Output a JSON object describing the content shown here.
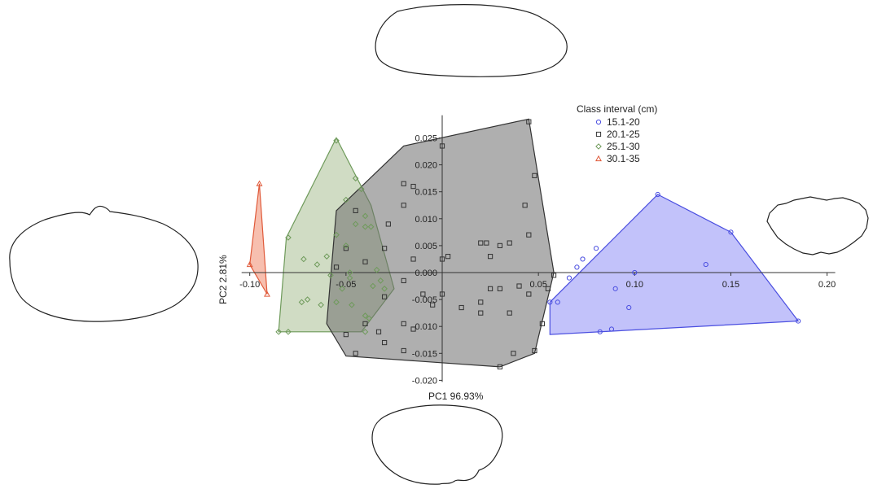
{
  "chart_data": {
    "type": "scatter",
    "title": "",
    "xlabel": "PC1 96.93%",
    "ylabel": "PC2 2.81%",
    "xlim": [
      -0.1,
      0.2
    ],
    "ylim": [
      -0.02,
      0.028
    ],
    "x_ticks": [
      "-0.10",
      "-0.05",
      "0.05",
      "0.10",
      "0.15",
      "0.20"
    ],
    "y_ticks": [
      "-0.020",
      "-0.015",
      "-0.010",
      "-0.005",
      "0.000",
      "0.005",
      "0.010",
      "0.015",
      "0.020",
      "0.025"
    ],
    "x_tick_values": [
      -0.1,
      -0.05,
      0.05,
      0.1,
      0.15,
      0.2
    ],
    "y_tick_values": [
      -0.02,
      -0.015,
      -0.01,
      -0.005,
      0.0,
      0.005,
      0.01,
      0.015,
      0.02,
      0.025
    ],
    "grid": false,
    "legend": {
      "title": "Class interval (cm)",
      "placement": "top-right"
    },
    "series": [
      {
        "name": "15.1-20",
        "marker": "circle",
        "color": "#4a4ee0",
        "fill": "#8f8ff5",
        "points": [
          [
            0.056,
            -0.0055
          ],
          [
            0.06,
            -0.0055
          ],
          [
            0.066,
            -0.001
          ],
          [
            0.07,
            0.001
          ],
          [
            0.073,
            0.0025
          ],
          [
            0.08,
            0.0045
          ],
          [
            0.09,
            -0.003
          ],
          [
            0.097,
            -0.0065
          ],
          [
            0.1,
            0.0
          ],
          [
            0.082,
            -0.011
          ],
          [
            0.088,
            -0.0105
          ],
          [
            0.112,
            0.0145
          ],
          [
            0.137,
            0.0015
          ],
          [
            0.15,
            0.0075
          ],
          [
            0.185,
            -0.009
          ]
        ],
        "hull": [
          [
            0.112,
            0.0145
          ],
          [
            0.15,
            0.0075
          ],
          [
            0.185,
            -0.009
          ],
          [
            0.056,
            -0.0115
          ],
          [
            0.056,
            -0.0055
          ]
        ]
      },
      {
        "name": "20.1-25",
        "marker": "square",
        "color": "#333333",
        "fill": "#6e6e6e",
        "points": [
          [
            -0.045,
            0.0115
          ],
          [
            -0.028,
            0.009
          ],
          [
            -0.02,
            0.0165
          ],
          [
            -0.015,
            0.016
          ],
          [
            -0.02,
            0.0125
          ],
          [
            0.0,
            0.0235
          ],
          [
            0.045,
            0.028
          ],
          [
            0.048,
            0.018
          ],
          [
            0.043,
            0.0125
          ],
          [
            0.045,
            0.007
          ],
          [
            0.023,
            0.0055
          ],
          [
            0.02,
            0.0055
          ],
          [
            0.035,
            0.0055
          ],
          [
            0.03,
            0.005
          ],
          [
            0.025,
            0.003
          ],
          [
            0.003,
            0.003
          ],
          [
            0.0,
            0.0025
          ],
          [
            -0.015,
            0.0025
          ],
          [
            -0.03,
            0.0045
          ],
          [
            -0.05,
            0.0045
          ],
          [
            -0.04,
            0.002
          ],
          [
            -0.055,
            0.001
          ],
          [
            -0.02,
            -0.0015
          ],
          [
            -0.01,
            -0.004
          ],
          [
            0.0,
            -0.004
          ],
          [
            -0.005,
            -0.006
          ],
          [
            0.01,
            -0.0065
          ],
          [
            0.02,
            -0.0055
          ],
          [
            0.025,
            -0.003
          ],
          [
            0.03,
            -0.003
          ],
          [
            0.04,
            -0.0025
          ],
          [
            0.045,
            -0.004
          ],
          [
            0.035,
            -0.0075
          ],
          [
            0.02,
            -0.0075
          ],
          [
            -0.03,
            -0.0045
          ],
          [
            -0.04,
            -0.0095
          ],
          [
            -0.033,
            -0.011
          ],
          [
            -0.02,
            -0.0095
          ],
          [
            -0.015,
            -0.0105
          ],
          [
            -0.05,
            -0.0115
          ],
          [
            -0.03,
            -0.013
          ],
          [
            -0.02,
            -0.0145
          ],
          [
            0.03,
            -0.0175
          ],
          [
            0.037,
            -0.015
          ],
          [
            0.048,
            -0.0145
          ],
          [
            0.055,
            -0.003
          ],
          [
            0.058,
            -0.0005
          ],
          [
            0.052,
            -0.0095
          ],
          [
            -0.045,
            -0.015
          ]
        ],
        "hull": [
          [
            -0.055,
            0.0115
          ],
          [
            -0.02,
            0.0235
          ],
          [
            0.045,
            0.0285
          ],
          [
            0.058,
            0.0
          ],
          [
            0.048,
            -0.015
          ],
          [
            0.03,
            -0.0175
          ],
          [
            -0.05,
            -0.0155
          ],
          [
            -0.06,
            -0.0095
          ]
        ]
      },
      {
        "name": "25.1-30",
        "marker": "diamond",
        "color": "#6e9a5a",
        "fill": "#a9bf94",
        "points": [
          [
            -0.055,
            0.0245
          ],
          [
            -0.045,
            0.0175
          ],
          [
            -0.042,
            0.0155
          ],
          [
            -0.05,
            0.0135
          ],
          [
            -0.04,
            0.0105
          ],
          [
            -0.045,
            0.009
          ],
          [
            -0.04,
            0.0085
          ],
          [
            -0.037,
            0.0085
          ],
          [
            -0.055,
            0.007
          ],
          [
            -0.05,
            0.005
          ],
          [
            -0.08,
            0.0065
          ],
          [
            -0.06,
            0.003
          ],
          [
            -0.065,
            0.0015
          ],
          [
            -0.072,
            0.0025
          ],
          [
            -0.058,
            -0.0005
          ],
          [
            -0.048,
            0.0
          ],
          [
            -0.048,
            -0.001
          ],
          [
            -0.052,
            -0.003
          ],
          [
            -0.07,
            -0.005
          ],
          [
            -0.073,
            -0.0055
          ],
          [
            -0.063,
            -0.006
          ],
          [
            -0.055,
            -0.0055
          ],
          [
            -0.047,
            -0.006
          ],
          [
            -0.04,
            -0.008
          ],
          [
            -0.038,
            -0.0085
          ],
          [
            -0.036,
            -0.0025
          ],
          [
            -0.032,
            -0.0015
          ],
          [
            -0.03,
            -0.003
          ],
          [
            -0.034,
            0.0005
          ],
          [
            -0.08,
            -0.011
          ],
          [
            -0.085,
            -0.011
          ],
          [
            -0.04,
            -0.011
          ]
        ],
        "hull": [
          [
            -0.055,
            0.025
          ],
          [
            -0.037,
            0.0125
          ],
          [
            -0.025,
            -0.003
          ],
          [
            -0.042,
            -0.011
          ],
          [
            -0.085,
            -0.011
          ],
          [
            -0.081,
            0.0065
          ]
        ]
      },
      {
        "name": "30.1-35",
        "marker": "triangle",
        "color": "#e05a3a",
        "fill": "#f08a6e",
        "points": [
          [
            -0.095,
            0.0165
          ],
          [
            -0.1,
            0.0015
          ],
          [
            -0.091,
            -0.004
          ]
        ],
        "hull": [
          [
            -0.095,
            0.0165
          ],
          [
            -0.091,
            -0.004
          ],
          [
            -0.1,
            0.0015
          ]
        ]
      }
    ]
  },
  "shape_outlines": [
    {
      "name": "outline-top",
      "position": "top"
    },
    {
      "name": "outline-left",
      "position": "left"
    },
    {
      "name": "outline-right",
      "position": "right"
    },
    {
      "name": "outline-bottom",
      "position": "bottom"
    }
  ]
}
